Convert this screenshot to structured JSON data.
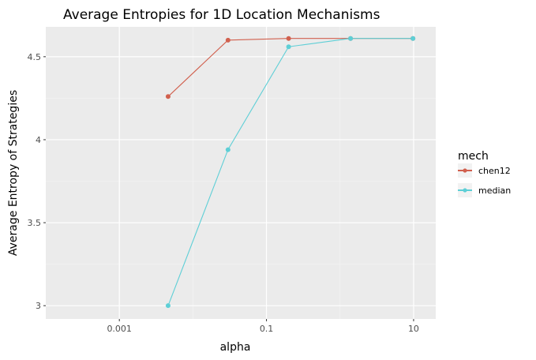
{
  "chart_data": {
    "type": "line",
    "title": "Average Entropies for 1D Location Mechanisms",
    "xlabel": "alpha",
    "ylabel": "Average Entropy of Strategies",
    "x_scale": "log10",
    "xlim": [
      0.0001,
      20
    ],
    "ylim": [
      2.92,
      4.68
    ],
    "x_ticks": [
      {
        "value": 0.001,
        "label": "0.001"
      },
      {
        "value": 0.1,
        "label": "0.1"
      },
      {
        "value": 10,
        "label": "10"
      }
    ],
    "y_ticks": [
      {
        "value": 3,
        "label": "3"
      },
      {
        "value": 3.5,
        "label": "3.5"
      },
      {
        "value": 4,
        "label": "4"
      },
      {
        "value": 4.5,
        "label": "4.5"
      }
    ],
    "grid": true,
    "legend": {
      "title": "mech",
      "position": "right"
    },
    "series": [
      {
        "name": "chen12",
        "color": "#d1604e",
        "x": [
          0.0046,
          0.03,
          0.2,
          1.39,
          9.8
        ],
        "y": [
          4.26,
          4.6,
          4.61,
          4.61,
          4.61
        ]
      },
      {
        "name": "median",
        "color": "#5ecfd6",
        "x": [
          0.0046,
          0.03,
          0.2,
          1.39,
          9.8
        ],
        "y": [
          3.0,
          3.94,
          4.56,
          4.61,
          4.61
        ]
      }
    ]
  }
}
